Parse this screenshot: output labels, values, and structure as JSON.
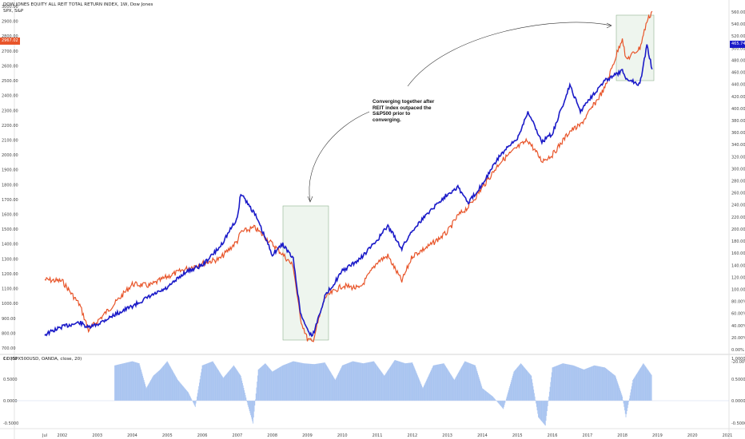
{
  "header": {
    "line1": "DOW JONES EQUITY ALL REIT TOTAL RETURN INDEX, 1W, Dow Jones",
    "line2": "SPX, S&P"
  },
  "indicator_label": "CC (SPX500USD, OANDA, close, 20)",
  "annotation": "Converging together after REIT index outpaced the S&P500 prior to converging.",
  "price_badges": {
    "left": "2967.02",
    "right": "465.745"
  },
  "colors": {
    "reit": "#1b1bc8",
    "spx": "#e8552a",
    "corr_fill": "#a9c4f0",
    "box_fill": "#eaf3ea",
    "box_stroke": "#8fb28f"
  },
  "chart_data": [
    {
      "type": "line",
      "x": [
        2001.5,
        2002.0,
        2002.5,
        2002.75,
        2003.0,
        2003.5,
        2004.0,
        2004.5,
        2005.0,
        2005.5,
        2006.0,
        2006.5,
        2007.0,
        2007.1,
        2007.5,
        2008.0,
        2008.3,
        2008.6,
        2008.8,
        2009.0,
        2009.15,
        2009.5,
        2010.0,
        2010.5,
        2011.0,
        2011.3,
        2011.7,
        2012.0,
        2012.5,
        2013.0,
        2013.3,
        2013.6,
        2014.0,
        2014.5,
        2015.0,
        2015.3,
        2015.7,
        2016.0,
        2016.5,
        2016.8,
        2017.0,
        2017.5,
        2018.0,
        2018.1,
        2018.5,
        2018.7,
        2018.85
      ],
      "series": [
        {
          "name": "DOW JONES EQUITY ALL REIT TOTAL RETURN INDEX",
          "axis": "right",
          "values": [
            25,
            38,
            45,
            36,
            42,
            58,
            72,
            88,
            102,
            128,
            140,
            170,
            218,
            260,
            225,
            158,
            175,
            150,
            62,
            33,
            22,
            88,
            130,
            150,
            182,
            205,
            168,
            198,
            230,
            258,
            270,
            243,
            275,
            322,
            350,
            395,
            345,
            358,
            438,
            395,
            412,
            446,
            462,
            450,
            440,
            505,
            465
          ]
        },
        {
          "name": "SPX",
          "axis": "left",
          "values": [
            1160,
            1150,
            990,
            820,
            880,
            1000,
            1130,
            1120,
            1180,
            1230,
            1270,
            1300,
            1420,
            1480,
            1510,
            1400,
            1330,
            1250,
            900,
            760,
            740,
            1040,
            1120,
            1100,
            1280,
            1320,
            1150,
            1320,
            1390,
            1480,
            1590,
            1650,
            1780,
            1950,
            2050,
            2100,
            1960,
            2000,
            2160,
            2200,
            2270,
            2450,
            2790,
            2640,
            2720,
            2900,
            2967
          ]
        }
      ],
      "y_left": [
        700,
        3000
      ],
      "y_right": [
        0,
        560
      ],
      "ticks_left": [
        "3000.00",
        "2900.00",
        "2800.00",
        "2700.00",
        "2600.00",
        "2500.00",
        "2400.00",
        "2300.00",
        "2200.00",
        "2100.00",
        "2000.00",
        "1900.00",
        "1800.00",
        "1700.00",
        "1600.00",
        "1500.00",
        "1400.00",
        "1300.00",
        "1200.00",
        "1100.00",
        "1000.00",
        "900.00",
        "800.00",
        "700.00"
      ],
      "ticks_right": [
        "560.00%",
        "540.00%",
        "520.00%",
        "500.00%",
        "480.00%",
        "460.00%",
        "440.00%",
        "420.00%",
        "400.00%",
        "380.00%",
        "360.00%",
        "340.00%",
        "320.00%",
        "300.00%",
        "280.00%",
        "260.00%",
        "240.00%",
        "220.00%",
        "200.00%",
        "180.00%",
        "160.00%",
        "140.00%",
        "120.00%",
        "100.00%",
        "80.00%",
        "60.00%",
        "40.00%",
        "20.00%",
        "0.00%",
        "-20.00%"
      ],
      "x_ticks": [
        "Jul",
        "2002",
        "2003",
        "2004",
        "2005",
        "2006",
        "2007",
        "2008",
        "2009",
        "2010",
        "2011",
        "2012",
        "2013",
        "2014",
        "2015",
        "2016",
        "2017",
        "2018",
        "2019",
        "2020",
        "2021"
      ]
    },
    {
      "type": "area",
      "title": "CC (SPX500USD, OANDA, close, 20)",
      "x": [
        2003.5,
        2004.0,
        2004.2,
        2004.4,
        2004.6,
        2004.8,
        2005.0,
        2005.3,
        2005.6,
        2005.8,
        2006.0,
        2006.3,
        2006.6,
        2006.9,
        2007.1,
        2007.3,
        2007.45,
        2007.6,
        2007.8,
        2008.0,
        2008.3,
        2008.6,
        2008.9,
        2009.2,
        2009.5,
        2009.8,
        2010.0,
        2010.3,
        2010.6,
        2010.9,
        2011.2,
        2011.5,
        2011.8,
        2012.0,
        2012.3,
        2012.6,
        2012.9,
        2013.2,
        2013.5,
        2013.8,
        2014.0,
        2014.3,
        2014.6,
        2014.9,
        2015.1,
        2015.4,
        2015.6,
        2015.8,
        2016.0,
        2016.3,
        2016.6,
        2016.9,
        2017.2,
        2017.5,
        2017.8,
        2018.0,
        2018.1,
        2018.3,
        2018.6,
        2018.85
      ],
      "values": [
        0.85,
        0.95,
        0.9,
        0.3,
        0.6,
        0.75,
        0.95,
        0.5,
        0.2,
        -0.15,
        0.85,
        0.95,
        0.55,
        0.85,
        0.6,
        -0.1,
        -0.55,
        0.75,
        0.9,
        0.7,
        0.85,
        0.95,
        0.9,
        0.88,
        0.92,
        0.5,
        0.85,
        0.95,
        0.9,
        0.95,
        0.6,
        0.98,
        0.9,
        0.92,
        0.3,
        0.85,
        0.9,
        0.5,
        0.95,
        0.85,
        0.3,
        0.1,
        -0.2,
        0.7,
        0.9,
        0.6,
        -0.4,
        -0.6,
        0.8,
        0.9,
        0.85,
        0.75,
        0.85,
        0.8,
        0.6,
        0.1,
        -0.4,
        0.5,
        0.9,
        0.6
      ],
      "ylim": [
        -1,
        1
      ],
      "ticks": [
        "1.0000",
        "0.5000",
        "0.0000",
        "-0.5000"
      ]
    }
  ]
}
